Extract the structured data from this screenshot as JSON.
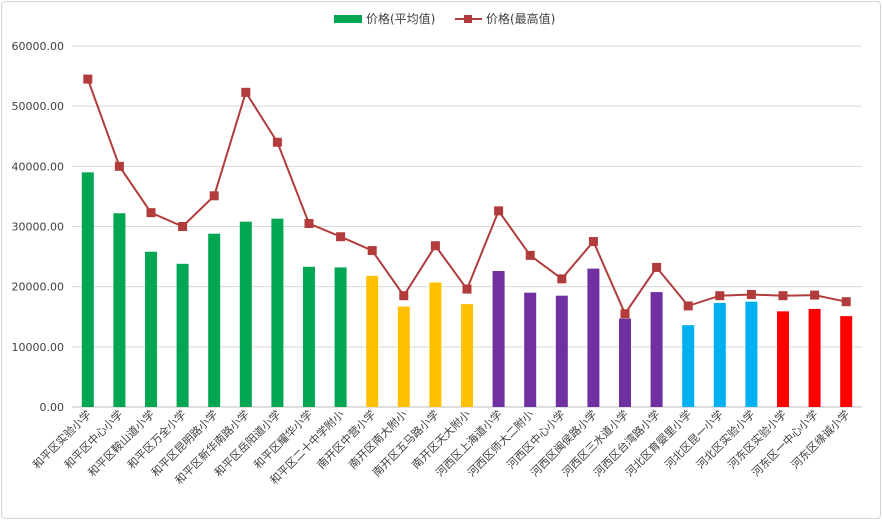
{
  "chart_data": {
    "type": "bar",
    "title": "",
    "xlabel": "",
    "ylabel": "",
    "ylim": [
      0,
      60000
    ],
    "yticks": [
      "0.00",
      "10000.00",
      "20000.00",
      "30000.00",
      "40000.00",
      "50000.00",
      "60000.00"
    ],
    "grid": true,
    "legend_position": "top-center",
    "categories": [
      "和平区实验小学",
      "和平区中心小学",
      "和平区鞍山道小学",
      "和平区万全小学",
      "和平区昆明路小学",
      "和平区新华南路小学",
      "和平区岳阳道小学",
      "和平区耀华小学",
      "和平区二十中学附小",
      "南开区中营小学",
      "南开区南大附小",
      "南开区五马路小学",
      "南开区天大附小",
      "河西区上海道小学",
      "河西区师大二附小",
      "河西区中心小学",
      "河西区闽侯路小学",
      "河西区三水道小学",
      "河西区台湾路小学",
      "河北区育婴里小学",
      "河北区昆一小学",
      "河北区实验小学",
      "河东区实验小学",
      "河东区一中心小学",
      "河东区缘诚小学"
    ],
    "series": [
      {
        "name": "价格(平均值)",
        "kind": "bar",
        "values": [
          39000,
          32200,
          25800,
          23800,
          28800,
          30800,
          31300,
          23300,
          23200,
          21800,
          16700,
          20700,
          17100,
          22600,
          19000,
          18500,
          23000,
          14700,
          19100,
          13600,
          17300,
          17500,
          15900,
          16300,
          15100
        ]
      },
      {
        "name": "价格(最高值)",
        "kind": "line",
        "color": "#b23b3b",
        "values": [
          54500,
          40000,
          32300,
          30000,
          35100,
          52300,
          44000,
          30500,
          28300,
          26000,
          18500,
          26800,
          19600,
          32600,
          25200,
          21300,
          27500,
          15500,
          23200,
          16800,
          18500,
          18700,
          18500,
          18600,
          17500
        ]
      }
    ],
    "bar_colors": [
      "#00a651",
      "#00a651",
      "#00a651",
      "#00a651",
      "#00a651",
      "#00a651",
      "#00a651",
      "#00a651",
      "#00a651",
      "#ffc000",
      "#ffc000",
      "#ffc000",
      "#ffc000",
      "#7030a0",
      "#7030a0",
      "#7030a0",
      "#7030a0",
      "#7030a0",
      "#7030a0",
      "#00b0f0",
      "#00b0f0",
      "#00b0f0",
      "#ff0000",
      "#ff0000",
      "#ff0000"
    ],
    "legend": {
      "bar_label": "价格(平均值)",
      "bar_color": "#00a651",
      "line_label": "价格(最高值)",
      "line_color": "#b23b3b"
    }
  }
}
